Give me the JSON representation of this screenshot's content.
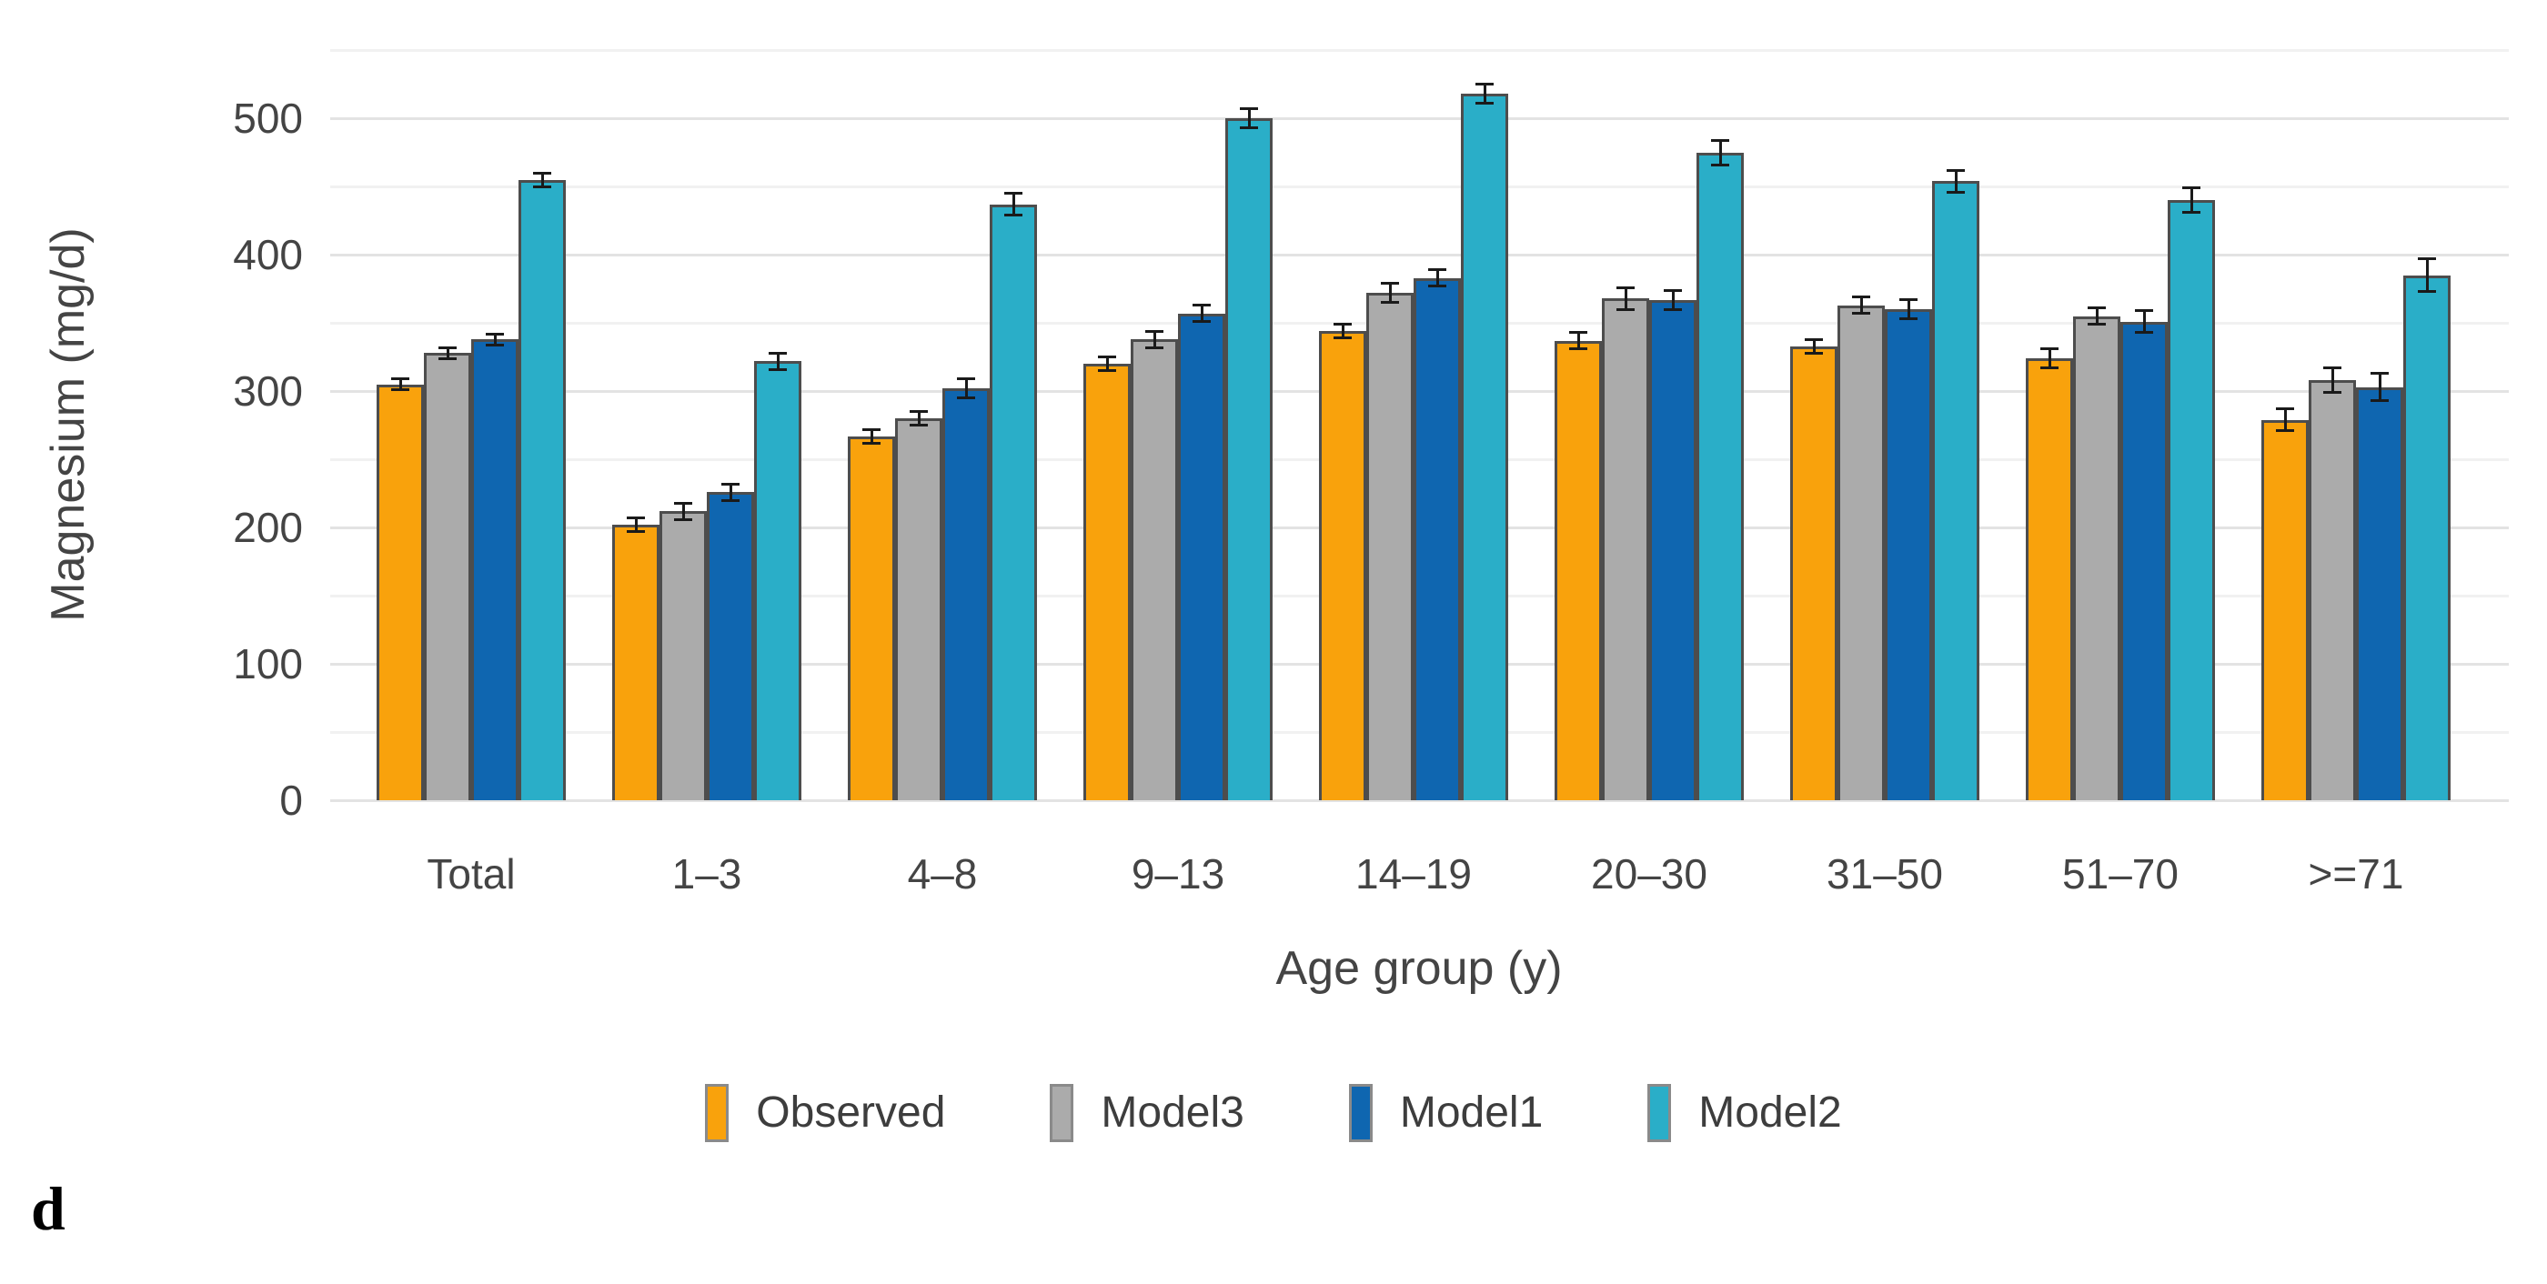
{
  "panel_label": "d",
  "chart_data": {
    "type": "bar",
    "title": "",
    "xlabel": "Age group (y)",
    "ylabel": "Magnesium (mg/d)",
    "ylim": [
      0,
      550
    ],
    "y_ticks": [
      0,
      100,
      200,
      300,
      400,
      500
    ],
    "grid": "horizontal, major every 100, minor every 50",
    "legend_position": "bottom-center",
    "error_bars": "plus-minus, black with caps",
    "categories": [
      "Total",
      "1–3",
      "4–8",
      "9–13",
      "14–19",
      "20–30",
      "31–50",
      "51–70",
      ">=71"
    ],
    "series": [
      {
        "name": "Observed",
        "color": "#F9A20C",
        "values": [
          305,
          202,
          267,
          320,
          344,
          337,
          333,
          324,
          279
        ],
        "errors": [
          4,
          5,
          5,
          5,
          5,
          6,
          5,
          7,
          8
        ]
      },
      {
        "name": "Model3",
        "color": "#ABABAB",
        "values": [
          328,
          212,
          280,
          338,
          372,
          368,
          363,
          355,
          308
        ],
        "errors": [
          4,
          6,
          5,
          6,
          7,
          8,
          6,
          6,
          9
        ]
      },
      {
        "name": "Model1",
        "color": "#0F66B0",
        "values": [
          338,
          226,
          302,
          357,
          383,
          367,
          360,
          351,
          303
        ],
        "errors": [
          4,
          6,
          7,
          6,
          6,
          7,
          7,
          8,
          10
        ]
      },
      {
        "name": "Model2",
        "color": "#2AAEC8",
        "values": [
          455,
          322,
          437,
          500,
          518,
          475,
          454,
          440,
          385
        ],
        "errors": [
          5,
          6,
          8,
          7,
          7,
          9,
          8,
          9,
          12
        ]
      }
    ],
    "colors": {
      "bar_border": "#4D4D4D",
      "error_bar": "#1A1A1A",
      "major_grid": "#E3E3E3",
      "minor_grid": "#F1F1F1",
      "text": "#444444"
    }
  }
}
